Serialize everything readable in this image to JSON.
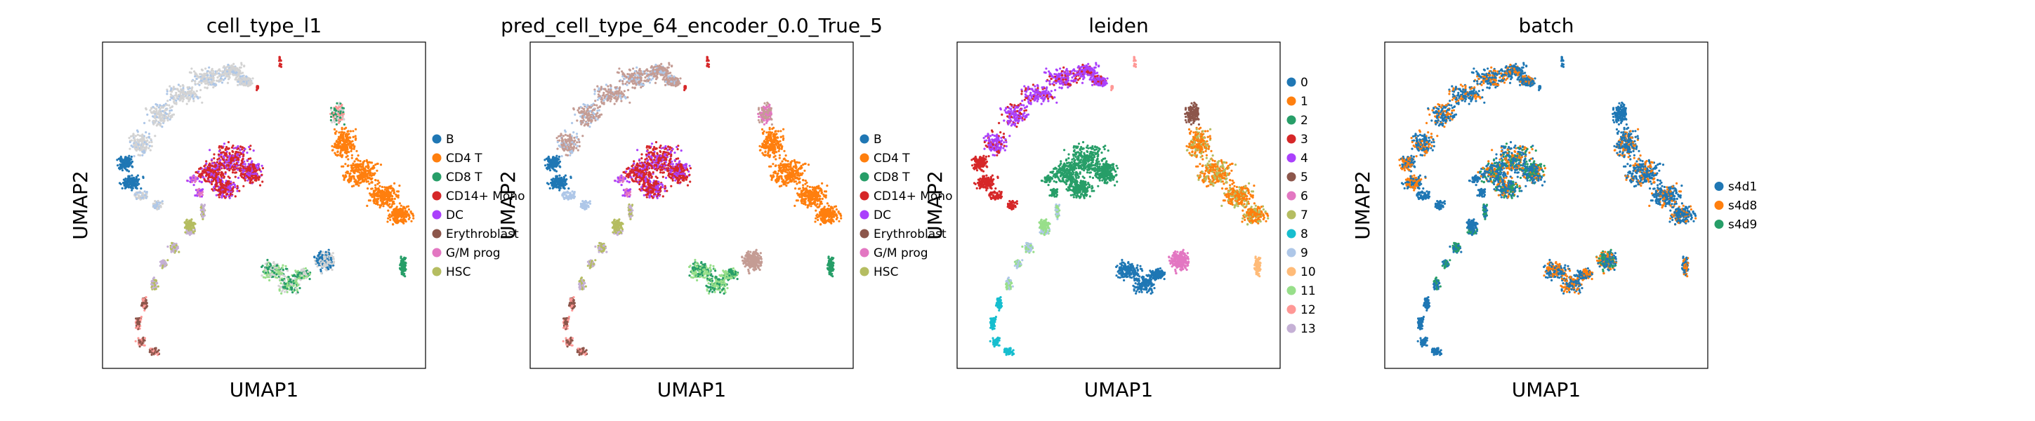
{
  "chart_data": [
    {
      "type": "scatter",
      "title": "cell_type_l1",
      "xlabel": "UMAP1",
      "ylabel": "UMAP2",
      "grid": false,
      "legend": {
        "placement": "right",
        "entries": [
          {
            "label": "B",
            "color": "#1f77b4"
          },
          {
            "label": "CD4 T",
            "color": "#ff7f0e"
          },
          {
            "label": "CD8 T",
            "color": "#279e68"
          },
          {
            "label": "CD14+ Mono",
            "color": "#d62728"
          },
          {
            "label": "DC",
            "color": "#aa40fc"
          },
          {
            "label": "Erythroblast",
            "color": "#8c564b"
          },
          {
            "label": "G/M prog",
            "color": "#e377c2"
          },
          {
            "label": "HSC",
            "color": "#b5bd61"
          }
        ]
      },
      "unlabeled_color": "#d3d3d3"
    },
    {
      "type": "scatter",
      "title": "pred_cell_type_64_encoder_0.0_True_5",
      "xlabel": "UMAP1",
      "ylabel": "UMAP2",
      "grid": false,
      "legend": {
        "placement": "right",
        "entries": [
          {
            "label": "B",
            "color": "#1f77b4"
          },
          {
            "label": "CD4 T",
            "color": "#ff7f0e"
          },
          {
            "label": "CD8 T",
            "color": "#279e68"
          },
          {
            "label": "CD14+ Mono",
            "color": "#d62728"
          },
          {
            "label": "DC",
            "color": "#aa40fc"
          },
          {
            "label": "Erythroblast",
            "color": "#8c564b"
          },
          {
            "label": "G/M prog",
            "color": "#e377c2"
          },
          {
            "label": "HSC",
            "color": "#b5bd61"
          }
        ]
      }
    },
    {
      "type": "scatter",
      "title": "leiden",
      "xlabel": "UMAP1",
      "ylabel": "UMAP2",
      "grid": false,
      "legend": {
        "placement": "right",
        "entries": [
          {
            "label": "0",
            "color": "#1f77b4"
          },
          {
            "label": "1",
            "color": "#ff7f0e"
          },
          {
            "label": "2",
            "color": "#279e68"
          },
          {
            "label": "3",
            "color": "#d62728"
          },
          {
            "label": "4",
            "color": "#aa40fc"
          },
          {
            "label": "5",
            "color": "#8c564b"
          },
          {
            "label": "6",
            "color": "#e377c2"
          },
          {
            "label": "7",
            "color": "#b5bd61"
          },
          {
            "label": "8",
            "color": "#17becf"
          },
          {
            "label": "9",
            "color": "#aec7e8"
          },
          {
            "label": "10",
            "color": "#ffbb78"
          },
          {
            "label": "11",
            "color": "#98df8a"
          },
          {
            "label": "12",
            "color": "#ff9896"
          },
          {
            "label": "13",
            "color": "#c5b0d5"
          }
        ]
      }
    },
    {
      "type": "scatter",
      "title": "batch",
      "xlabel": "UMAP1",
      "ylabel": "UMAP2",
      "grid": false,
      "legend": {
        "placement": "right",
        "entries": [
          {
            "label": "s4d1",
            "color": "#1f77b4"
          },
          {
            "label": "s4d8",
            "color": "#ff7f0e"
          },
          {
            "label": "s4d9",
            "color": "#279e68"
          }
        ]
      }
    }
  ]
}
